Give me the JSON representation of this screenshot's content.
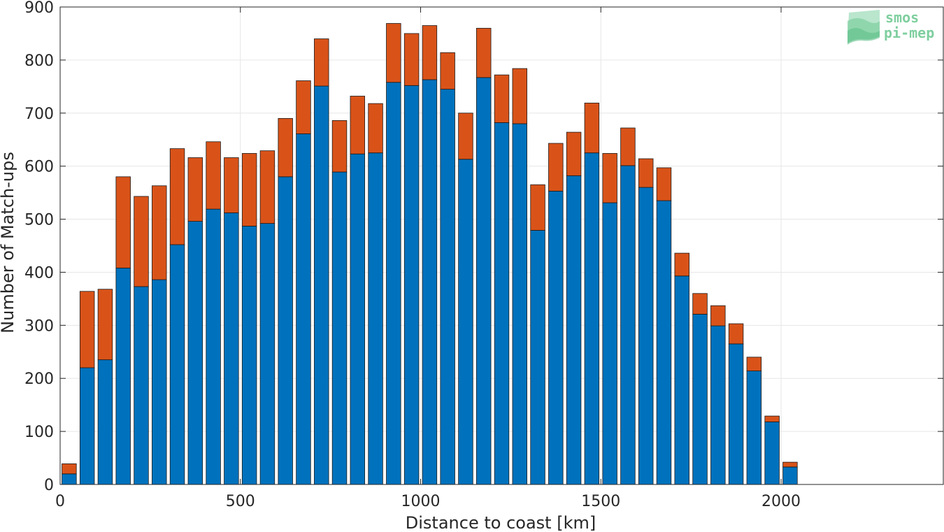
{
  "chart_data": {
    "type": "bar",
    "stacked": true,
    "x_label": "Distance to coast [km]",
    "y_label": "Number of Match-ups",
    "x_ticks": [
      0,
      500,
      1000,
      1500,
      2000
    ],
    "y_ticks": [
      0,
      100,
      200,
      300,
      400,
      500,
      600,
      700,
      800,
      900
    ],
    "xlim": [
      0,
      2450
    ],
    "ylim": [
      0,
      900
    ],
    "grid": true,
    "bar_width_km": 40,
    "x": [
      25,
      75,
      125,
      175,
      225,
      275,
      325,
      375,
      425,
      475,
      525,
      575,
      625,
      675,
      725,
      775,
      825,
      875,
      925,
      975,
      1025,
      1075,
      1125,
      1175,
      1225,
      1275,
      1325,
      1375,
      1425,
      1475,
      1525,
      1575,
      1625,
      1675,
      1725,
      1775,
      1825,
      1875,
      1925,
      1975,
      2025
    ],
    "series": [
      {
        "color": "#0072bd",
        "values": [
          20,
          220,
          235,
          408,
          373,
          386,
          452,
          496,
          519,
          512,
          487,
          492,
          580,
          661,
          751,
          589,
          623,
          625,
          758,
          752,
          763,
          745,
          613,
          767,
          682,
          680,
          479,
          553,
          582,
          625,
          531,
          601,
          560,
          535,
          393,
          321,
          299,
          265,
          214,
          118,
          33
        ]
      },
      {
        "color": "#d95319",
        "values": [
          19,
          144,
          133,
          172,
          170,
          177,
          181,
          120,
          127,
          104,
          137,
          137,
          110,
          100,
          89,
          97,
          109,
          93,
          111,
          98,
          102,
          69,
          87,
          93,
          90,
          104,
          86,
          90,
          82,
          94,
          93,
          71,
          54,
          62,
          43,
          39,
          38,
          38,
          26,
          11,
          9
        ]
      }
    ]
  },
  "logo": {
    "line1": "smos",
    "line2": "pi-mep"
  }
}
